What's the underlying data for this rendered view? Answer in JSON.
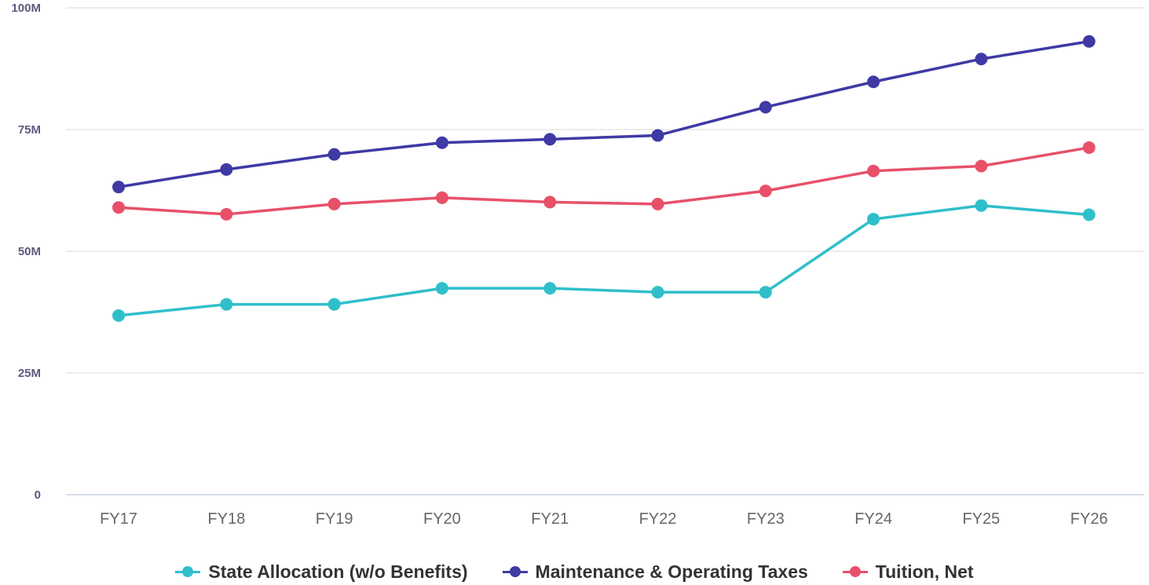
{
  "chart_data": {
    "type": "line",
    "categories": [
      "FY17",
      "FY18",
      "FY19",
      "FY20",
      "FY21",
      "FY22",
      "FY23",
      "FY24",
      "FY25",
      "FY26"
    ],
    "ylim": [
      0,
      100000000
    ],
    "y_ticks": [
      {
        "value": 0,
        "label": "0"
      },
      {
        "value": 25000000,
        "label": "25M"
      },
      {
        "value": 50000000,
        "label": "50M"
      },
      {
        "value": 75000000,
        "label": "75M"
      },
      {
        "value": 100000000,
        "label": "100M"
      }
    ],
    "grid": true,
    "legend_position": "bottom",
    "series": [
      {
        "name": "State Allocation (w/o Benefits)",
        "color": "#2fbfca",
        "values": [
          36800000,
          39100000,
          39100000,
          42400000,
          42400000,
          41600000,
          41600000,
          56600000,
          59400000,
          57500000
        ]
      },
      {
        "name": "Maintenance & Operating Taxes",
        "color": "#3f3aa4",
        "values": [
          63200000,
          66800000,
          69900000,
          72300000,
          73000000,
          73800000,
          79600000,
          84800000,
          89500000,
          93100000
        ]
      },
      {
        "name": "Tuition, Net",
        "color": "#e8506a",
        "values": [
          59000000,
          57600000,
          59700000,
          61000000,
          60100000,
          59700000,
          62400000,
          66500000,
          67500000,
          71300000
        ]
      }
    ]
  }
}
